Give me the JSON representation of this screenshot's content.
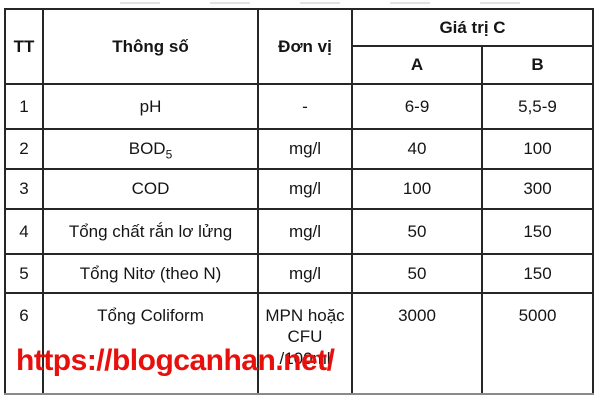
{
  "page": {
    "background_color": "#ffffff",
    "border_color": "#262626"
  },
  "table": {
    "headers": {
      "tt": "TT",
      "parameter": "Thông số",
      "unit": "Đơn vị",
      "value_group": "Giá trị C",
      "col_a": "A",
      "col_b": "B"
    },
    "rows": [
      {
        "tt": "1",
        "param": "pH",
        "param_sub": "",
        "unit": [
          "-"
        ],
        "a": "6-9",
        "b": "5,5-9"
      },
      {
        "tt": "2",
        "param": "BOD",
        "param_sub": "5",
        "unit": [
          "mg/l"
        ],
        "a": "40",
        "b": "100"
      },
      {
        "tt": "3",
        "param": "COD",
        "param_sub": "",
        "unit": [
          "mg/l"
        ],
        "a": "100",
        "b": "300"
      },
      {
        "tt": "4",
        "param": "Tổng chất rắn lơ lửng",
        "param_sub": "",
        "unit": [
          "mg/l"
        ],
        "a": "50",
        "b": "150"
      },
      {
        "tt": "5",
        "param": "Tổng Nitơ (theo N)",
        "param_sub": "",
        "unit": [
          "mg/l"
        ],
        "a": "50",
        "b": "150"
      },
      {
        "tt": "6",
        "param": "Tổng Coliform",
        "param_sub": "",
        "unit": [
          "MPN hoặc",
          "CFU",
          "/100ml"
        ],
        "a": "3000",
        "b": "5000"
      }
    ]
  },
  "watermark": {
    "text": "https://blogcanhan.net/",
    "color": "#e8100c"
  }
}
